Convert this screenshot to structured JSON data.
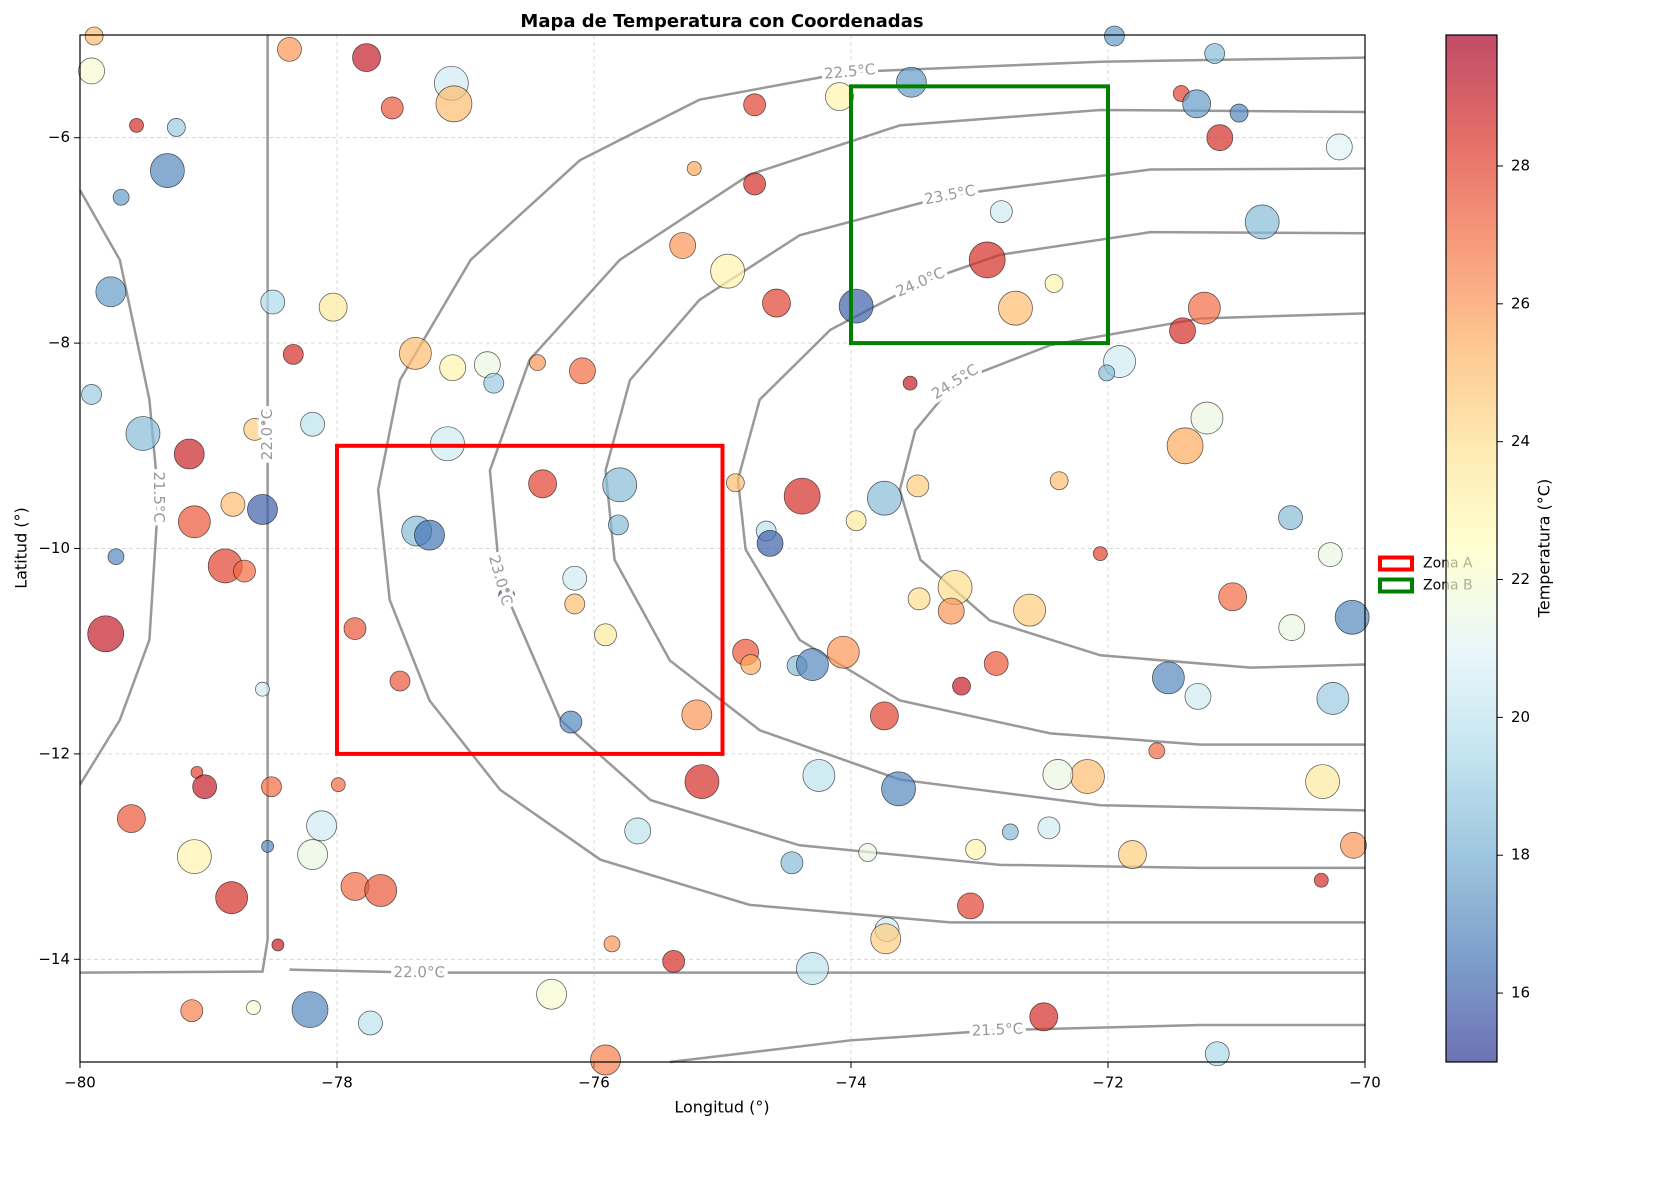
{
  "chart_data": {
    "type": "scatter",
    "title": "Mapa de Temperatura con Coordenadas",
    "xlabel": "Longitud (°)",
    "ylabel": "Latitud (°)",
    "xlim": [
      -80,
      -70
    ],
    "ylim": [
      -15,
      -5
    ],
    "xticks": [
      {
        "value": -80,
        "label": "−80"
      },
      {
        "value": -78,
        "label": "−78"
      },
      {
        "value": -76,
        "label": "−76"
      },
      {
        "value": -74,
        "label": "−74"
      },
      {
        "value": -72,
        "label": "−72"
      },
      {
        "value": -70,
        "label": "−70"
      }
    ],
    "yticks": [
      {
        "value": -6,
        "label": "−6"
      },
      {
        "value": -8,
        "label": "−8"
      },
      {
        "value": -10,
        "label": "−10"
      },
      {
        "value": -12,
        "label": "−12"
      },
      {
        "value": -14,
        "label": "−14"
      }
    ],
    "grid": true,
    "x": [
      -79.89,
      -79.91,
      -78.37,
      -77.77,
      -77.11,
      -77.09,
      -77.57,
      -79.56,
      -79.25,
      -79.32,
      -79.68,
      -79.76,
      -78.5,
      -78.03,
      -78.34,
      -77.39,
      -77.1,
      -76.83,
      -76.78,
      -76.44,
      -76.09,
      -79.91,
      -79.51,
      -78.19,
      -78.64,
      -77.14,
      -79.15,
      -78.81,
      -78.58,
      -79.11,
      -79.72,
      -78.87,
      -78.72,
      -79.8,
      -76.4,
      -75.8,
      -75.81,
      -77.38,
      -77.28,
      -76.68,
      -76.15,
      -76.15,
      -75.91,
      -77.86,
      -77.51,
      -76.18,
      -75.2,
      -78.58,
      -79.09,
      -79.03,
      -78.51,
      -77.99,
      -79.6,
      -78.12,
      -78.19,
      -79.11,
      -78.54,
      -77.86,
      -77.66,
      -78.82,
      -78.46,
      -79.13,
      -78.65,
      -78.21,
      -77.74,
      -76.33,
      -75.91,
      -75.86,
      -75.38,
      -75.66,
      -75.16,
      -75.31,
      -75.22,
      -74.96,
      -74.75,
      -74.75,
      -74.58,
      -74.09,
      -73.53,
      -73.96,
      -72.83,
      -72.94,
      -72.72,
      -72.42,
      -73.54,
      -71.95,
      -71.17,
      -71.43,
      -71.31,
      -70.98,
      -71.13,
      -70.2,
      -70.8,
      -71.25,
      -71.42,
      -71.91,
      -72.01,
      -71.23,
      -71.4,
      -72.38,
      -70.58,
      -72.06,
      -70.27,
      -70.1,
      -71.03,
      -70.57,
      -72.61,
      -73.19,
      -73.22,
      -73.47,
      -73.48,
      -73.74,
      -73.96,
      -74.38,
      -74.9,
      -74.66,
      -74.63,
      -74.82,
      -74.78,
      -74.42,
      -74.3,
      -74.06,
      -73.74,
      -73.14,
      -72.87,
      -71.53,
      -71.3,
      -70.25,
      -71.62,
      -70.33,
      -72.16,
      -72.39,
      -72.46,
      -72.76,
      -74.25,
      -73.63,
      -73.87,
      -73.03,
      -71.81,
      -70.09,
      -70.34,
      -74.46,
      -73.07,
      -73.72,
      -73.73,
      -74.3,
      -72.5,
      -71.15
    ],
    "y": [
      -5.01,
      -5.35,
      -5.14,
      -5.22,
      -5.47,
      -5.67,
      -5.71,
      -5.88,
      -5.9,
      -6.32,
      -6.58,
      -7.5,
      -7.6,
      -7.65,
      -8.11,
      -8.1,
      -8.24,
      -8.21,
      -8.39,
      -8.19,
      -8.27,
      -8.5,
      -8.88,
      -8.79,
      -8.84,
      -8.98,
      -9.08,
      -9.57,
      -9.62,
      -9.74,
      -10.08,
      -10.17,
      -10.22,
      -10.83,
      -9.37,
      -9.38,
      -9.77,
      -9.83,
      -9.87,
      -10.46,
      -10.29,
      -10.54,
      -10.84,
      -10.78,
      -11.29,
      -11.69,
      -11.62,
      -11.37,
      -12.18,
      -12.32,
      -12.32,
      -12.3,
      -12.63,
      -12.7,
      -12.98,
      -13.0,
      -12.9,
      -13.29,
      -13.33,
      -13.4,
      -13.86,
      -14.5,
      -14.47,
      -14.49,
      -14.62,
      -14.34,
      -14.98,
      -13.85,
      -14.02,
      -12.75,
      -12.27,
      -7.05,
      -6.3,
      -7.3,
      -5.68,
      -6.45,
      -7.61,
      -5.6,
      -5.46,
      -7.64,
      -6.72,
      -7.19,
      -7.66,
      -7.42,
      -8.39,
      -5.01,
      -5.18,
      -5.57,
      -5.67,
      -5.76,
      -6.0,
      -6.09,
      -6.82,
      -7.66,
      -7.88,
      -8.18,
      -8.29,
      -8.73,
      -9.0,
      -9.34,
      -9.7,
      -10.05,
      -10.06,
      -10.67,
      -10.47,
      -10.77,
      -10.6,
      -10.38,
      -10.61,
      -10.49,
      -9.39,
      -9.51,
      -9.73,
      -9.49,
      -9.36,
      -9.83,
      -9.95,
      -11.01,
      -11.13,
      -11.14,
      -11.13,
      -11.01,
      -11.63,
      -11.34,
      -11.12,
      -11.26,
      -11.44,
      -11.46,
      -11.97,
      -12.27,
      -12.22,
      -12.2,
      -12.72,
      -12.76,
      -12.21,
      -12.34,
      -12.96,
      -12.93,
      -12.98,
      -12.89,
      -13.23,
      -13.06,
      -13.48,
      -13.71,
      -13.8,
      -14.09,
      -14.56,
      -14.92
    ],
    "values": [
      25,
      22,
      26,
      29,
      20.5,
      25,
      27.5,
      28.5,
      19,
      17,
      17.5,
      17.5,
      19.5,
      23.5,
      28.5,
      25,
      23,
      21.5,
      19,
      26,
      27,
      19,
      18.5,
      20,
      24.5,
      20.5,
      28.8,
      25,
      16,
      27.5,
      17,
      28,
      27,
      29,
      28,
      18.5,
      18.5,
      18.5,
      16.5,
      16,
      20.5,
      25,
      23.5,
      27.5,
      27.5,
      17,
      26,
      20.5,
      28,
      29,
      27,
      27,
      27.5,
      20.5,
      21.5,
      23,
      17,
      27,
      27.5,
      28.5,
      29,
      26.5,
      22,
      17,
      20,
      22,
      26.5,
      26,
      28.5,
      20,
      28.5,
      26,
      25.5,
      23,
      28,
      28.5,
      28,
      23,
      17.5,
      16,
      20.5,
      28.5,
      25,
      23,
      29,
      17.5,
      18.5,
      28,
      17.5,
      17,
      28.5,
      21,
      18.5,
      27,
      28.5,
      20.5,
      18.5,
      21.5,
      25.5,
      25,
      18.5,
      28,
      21.5,
      17,
      27,
      21.5,
      24.5,
      24,
      26,
      24,
      24.5,
      18.5,
      23.5,
      28.5,
      25,
      20,
      16,
      27.5,
      25.5,
      18.5,
      17,
      26,
      28,
      29,
      27.5,
      17,
      20.5,
      19,
      27,
      23.5,
      25,
      21.5,
      20.5,
      18.5,
      20,
      17,
      21.5,
      23,
      24.5,
      26,
      28.5,
      18.5,
      28,
      20.5,
      24.5,
      20,
      28.5,
      19.5
    ],
    "sizes": [
      9,
      13,
      12,
      14,
      17,
      18,
      11,
      7,
      9,
      17,
      8,
      15,
      12,
      14,
      10,
      16,
      13,
      13,
      10,
      8,
      13,
      10,
      17,
      12,
      11,
      17,
      15,
      12,
      15,
      16,
      8,
      17,
      11,
      18,
      14,
      17,
      10,
      15,
      15,
      8,
      12,
      10,
      11,
      11,
      10,
      11,
      15,
      7,
      6,
      12,
      10,
      7,
      14,
      15,
      15,
      17,
      6,
      14,
      16,
      16,
      6,
      11,
      7,
      18,
      12,
      15,
      15,
      8,
      11,
      13,
      17,
      13,
      7,
      17,
      11,
      11,
      14,
      14,
      15,
      17,
      11,
      18,
      17,
      9,
      7,
      10,
      10,
      8,
      14,
      9,
      13,
      13,
      17,
      16,
      13,
      16,
      8,
      16,
      18,
      9,
      12,
      7,
      12,
      17,
      14,
      13,
      16,
      17,
      13,
      11,
      11,
      17,
      10,
      18,
      9,
      10,
      13,
      13,
      10,
      10,
      16,
      16,
      14,
      9,
      12,
      16,
      13,
      16,
      8,
      17,
      17,
      15,
      11,
      8,
      16,
      17,
      9,
      10,
      14,
      13,
      7,
      11,
      13,
      12,
      15,
      16,
      14,
      12
    ],
    "colorbar": {
      "label": "Temperatura (°C)",
      "lim": [
        15,
        29.9
      ],
      "ticks": [
        16,
        18,
        20,
        22,
        24,
        26,
        28
      ],
      "colormap": [
        "#313695",
        "#4575b4",
        "#74add1",
        "#abd9e9",
        "#e0f3f8",
        "#ffffbf",
        "#fee090",
        "#fdae61",
        "#f46d43",
        "#d73027",
        "#a50026"
      ],
      "alpha": 0.7
    },
    "contour_color": "#808080",
    "contours": [
      {
        "level": 22.5,
        "label": "22.5°C",
        "x": [
          -70,
          -72.06,
          -74.01,
          -75.18,
          -76.11,
          -76.96,
          -77.51,
          -77.68,
          -77.59,
          -77.28,
          -76.73,
          -75.95,
          -74.79,
          -73.23,
          -71.28,
          -70
        ],
        "y": [
          -5.22,
          -5.26,
          -5.36,
          -5.63,
          -6.22,
          -7.19,
          -8.36,
          -9.43,
          -10.5,
          -11.48,
          -12.35,
          -13.03,
          -13.47,
          -13.64,
          -13.64,
          -13.64
        ]
      },
      {
        "level": 23.0,
        "label": "23.0°C",
        "x": [
          -70,
          -72.06,
          -73.62,
          -74.79,
          -75.8,
          -76.5,
          -76.81,
          -76.73,
          -76.26,
          -75.56,
          -74.4,
          -72.84,
          -71.28,
          -70
        ],
        "y": [
          -5.75,
          -5.73,
          -5.88,
          -6.36,
          -7.19,
          -8.16,
          -9.24,
          -10.31,
          -11.67,
          -12.45,
          -12.89,
          -13.08,
          -13.11,
          -13.11
        ]
      },
      {
        "level": 23.5,
        "label": "23.5°C",
        "x": [
          -70,
          -71.67,
          -73.23,
          -74.4,
          -75.18,
          -75.72,
          -75.91,
          -75.84,
          -75.41,
          -74.71,
          -73.62,
          -72.06,
          -70
        ],
        "y": [
          -6.3,
          -6.31,
          -6.56,
          -6.95,
          -7.58,
          -8.36,
          -9.24,
          -10.11,
          -11.09,
          -11.77,
          -12.25,
          -12.5,
          -12.55
        ]
      },
      {
        "level": 24.0,
        "label": "24.0°C",
        "x": [
          -70,
          -71.67,
          -72.84,
          -73.46,
          -74.16,
          -74.71,
          -74.88,
          -74.82,
          -74.4,
          -73.62,
          -72.45,
          -71.28,
          -70
        ],
        "y": [
          -6.93,
          -6.92,
          -7.14,
          -7.41,
          -7.87,
          -8.55,
          -9.33,
          -10.01,
          -10.89,
          -11.48,
          -11.8,
          -11.91,
          -11.91
        ]
      },
      {
        "level": 24.5,
        "label": "24.5°C",
        "x": [
          -70,
          -71.28,
          -72.45,
          -73.19,
          -73.5,
          -73.62,
          -73.46,
          -72.92,
          -72.06,
          -70.89,
          -70
        ],
        "y": [
          -7.71,
          -7.76,
          -8.02,
          -8.38,
          -8.85,
          -9.43,
          -10.11,
          -10.7,
          -11.04,
          -11.16,
          -11.13
        ]
      },
      {
        "level": 22.0,
        "label": "22.0°C",
        "x": [
          -80,
          -78.58,
          -78.54,
          -78.54,
          -78.54
        ],
        "y": [
          -14.13,
          -14.12,
          -13.81,
          -8.89,
          -5
        ]
      },
      {
        "level": 22.0,
        "label": "22.0°C",
        "x": [
          -78.37,
          -77.36,
          -70
        ],
        "y": [
          -14.1,
          -14.13,
          -14.13
        ]
      },
      {
        "level": 21.5,
        "label": "21.5°C",
        "x": [
          -80,
          -79.69,
          -79.46,
          -79.39,
          -79.46,
          -79.69,
          -80
        ],
        "y": [
          -6.51,
          -7.19,
          -8.55,
          -9.5,
          -10.89,
          -11.67,
          -12.3
        ]
      },
      {
        "level": 21.5,
        "label": "21.5°C",
        "x": [
          -75.41,
          -74.01,
          -72.86,
          -71.28,
          -70
        ],
        "y": [
          -15,
          -14.79,
          -14.69,
          -14.64,
          -14.64
        ]
      }
    ],
    "zones": [
      {
        "name": "Zona A",
        "color": "#ff0000",
        "xlim": [
          -78,
          -75
        ],
        "ylim": [
          -12,
          -9
        ]
      },
      {
        "name": "Zona B",
        "color": "#008000",
        "xlim": [
          -74,
          -72
        ],
        "ylim": [
          -8,
          -5.5
        ]
      }
    ],
    "legend": "center right"
  }
}
